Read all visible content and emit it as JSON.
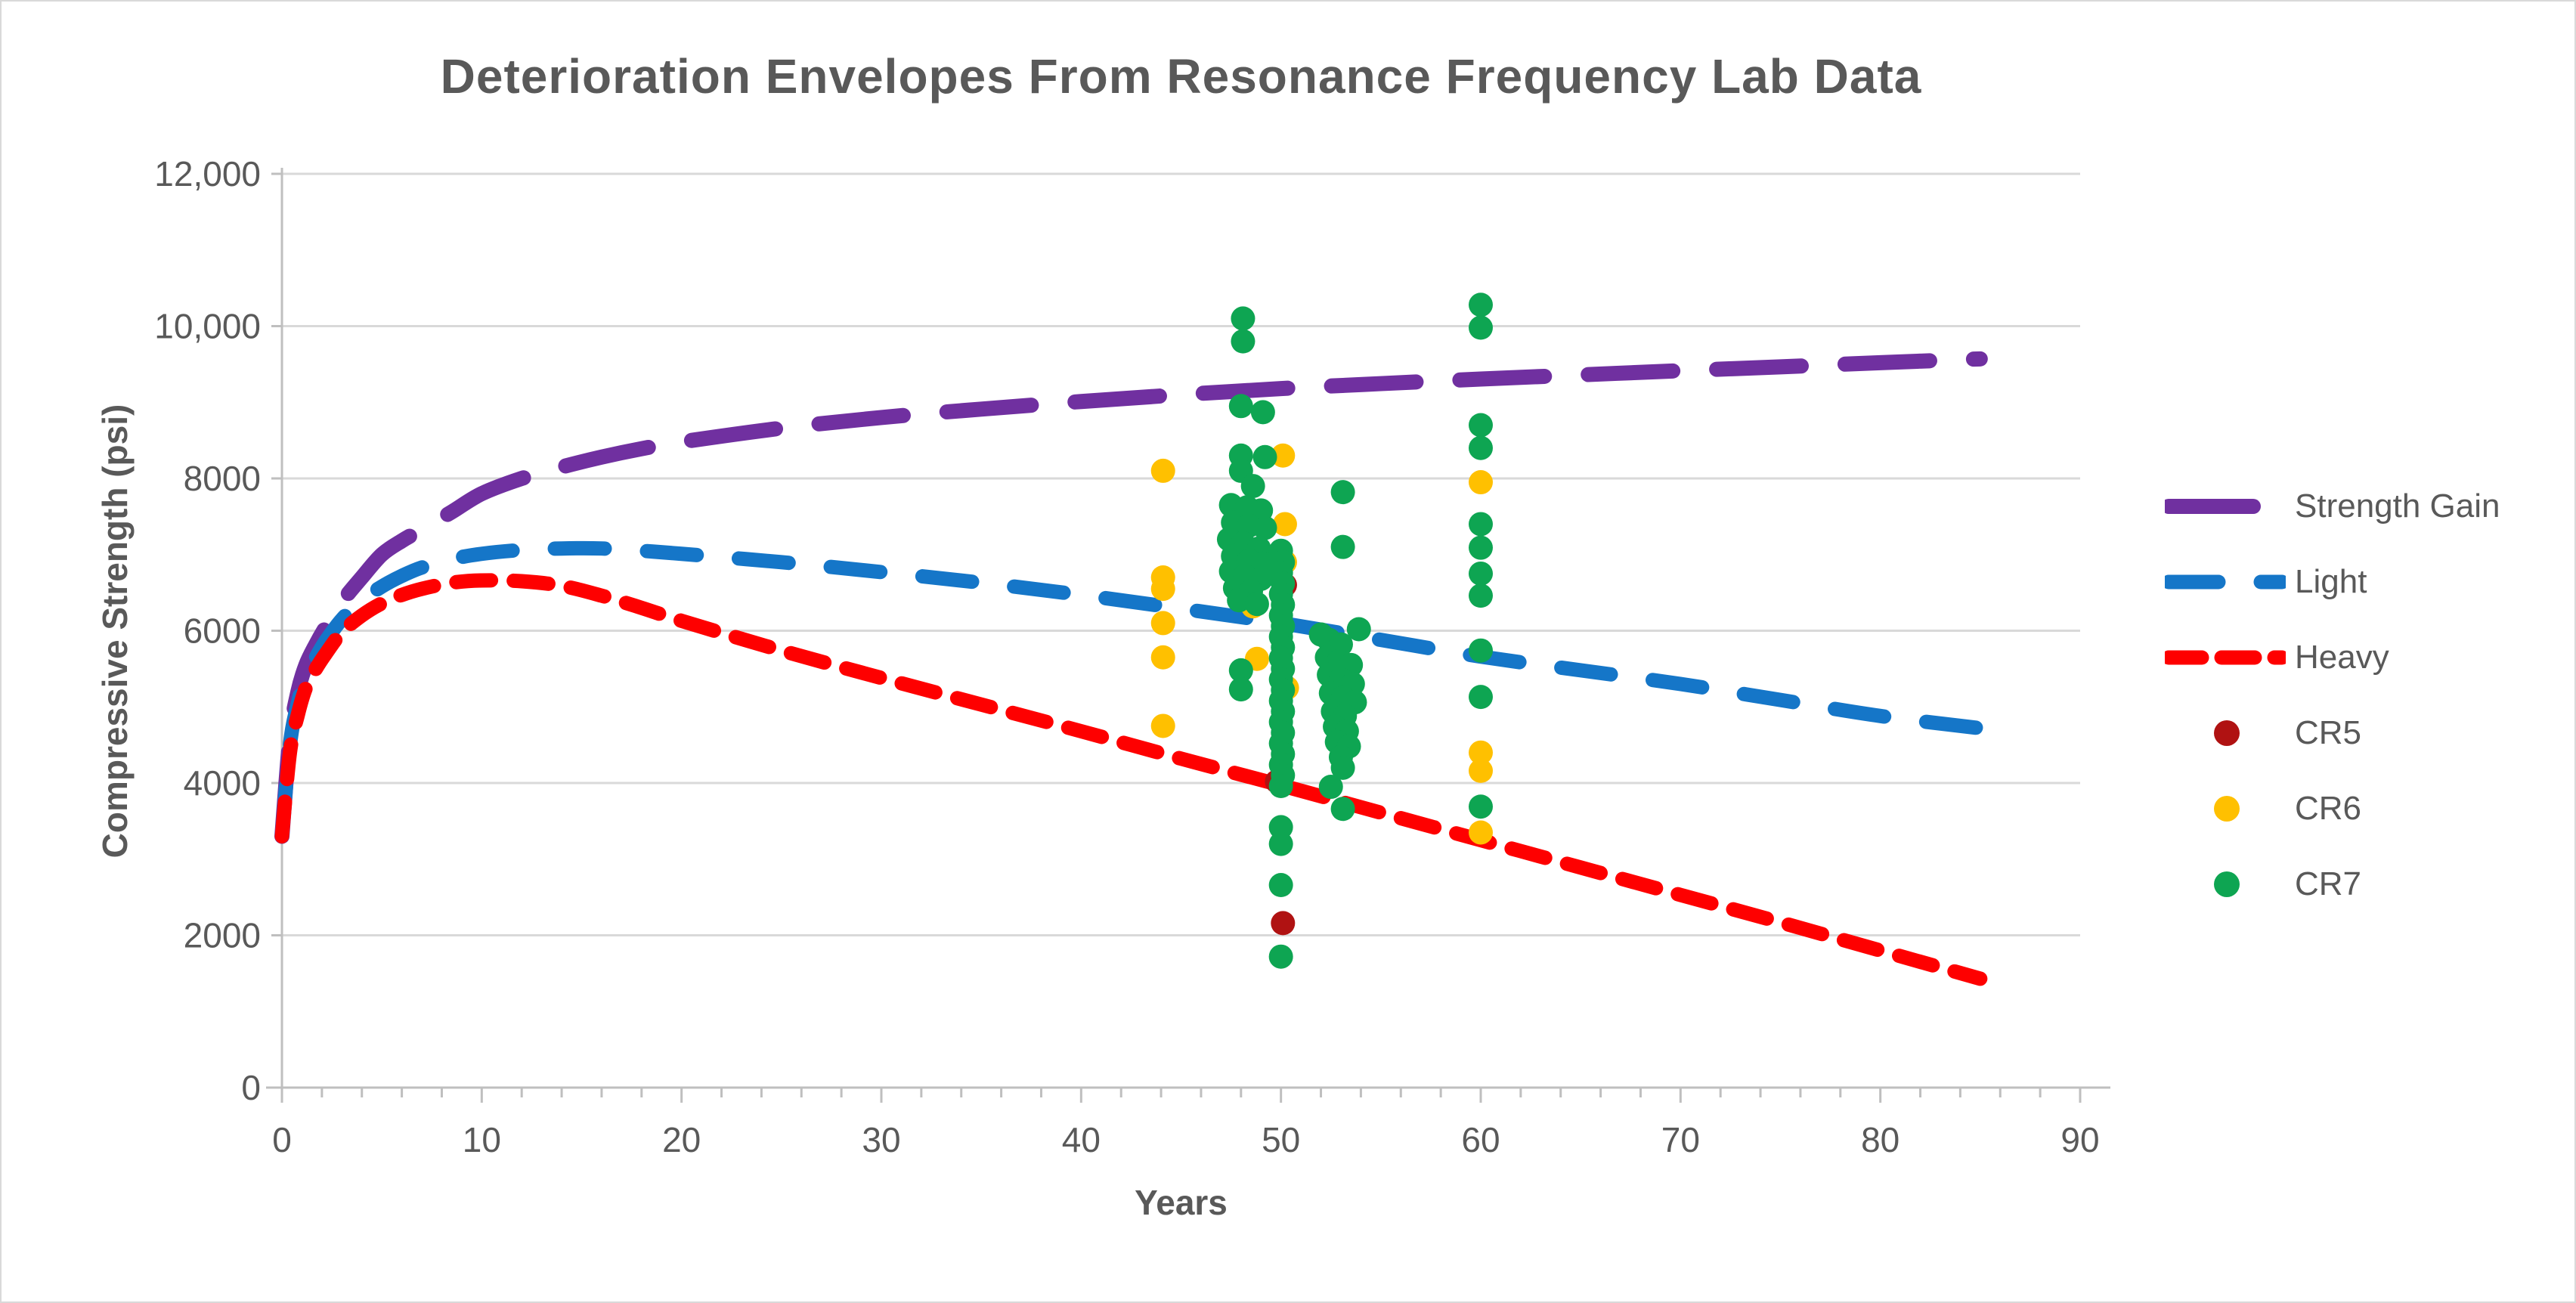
{
  "chart_data": {
    "type": "scatter+line",
    "title": "Deterioration Envelopes From Resonance Frequency Lab Data",
    "xlabel": "Years",
    "ylabel": "Compressive Strength (psi)",
    "xlim": [
      0,
      90
    ],
    "ylim": [
      0,
      12000
    ],
    "x_ticks": [
      0,
      10,
      20,
      30,
      40,
      50,
      60,
      70,
      80,
      90
    ],
    "x_tick_labels": [
      "0",
      "10",
      "20",
      "30",
      "40",
      "50",
      "60",
      "70",
      "80",
      "90"
    ],
    "x_minor_tick_step": 2,
    "y_ticks": [
      0,
      2000,
      4000,
      6000,
      8000,
      10000,
      12000
    ],
    "y_tick_labels": [
      "0",
      "2000",
      "4000",
      "6000",
      "8000",
      "10,000",
      "12,000"
    ],
    "grid": "horizontal",
    "legend_position": "right",
    "colors": {
      "text": "#595959",
      "grid": "#D9D9D9",
      "axis": "#BFBFBF",
      "strength_gain": "#7030A0",
      "light": "#1576C8",
      "heavy": "#FE0000",
      "cr5": "#B01212",
      "cr6": "#FFC000",
      "cr7": "#0EA552"
    },
    "series": [
      {
        "name": "Strength Gain",
        "type": "line",
        "color": "#7030A0",
        "width": 20,
        "dash": [
          112,
          58
        ],
        "points": [
          [
            0,
            3300
          ],
          [
            0.4,
            4600
          ],
          [
            0.8,
            5200
          ],
          [
            1.2,
            5550
          ],
          [
            1.7,
            5820
          ],
          [
            2.2,
            6050
          ],
          [
            3,
            6380
          ],
          [
            4,
            6700
          ],
          [
            5,
            7000
          ],
          [
            6,
            7180
          ],
          [
            7,
            7330
          ],
          [
            8.5,
            7560
          ],
          [
            10,
            7800
          ],
          [
            12,
            8000
          ],
          [
            14,
            8150
          ],
          [
            16,
            8280
          ],
          [
            18,
            8390
          ],
          [
            20,
            8480
          ],
          [
            25,
            8660
          ],
          [
            30,
            8800
          ],
          [
            35,
            8910
          ],
          [
            40,
            9010
          ],
          [
            45,
            9100
          ],
          [
            50,
            9180
          ],
          [
            55,
            9245
          ],
          [
            60,
            9305
          ],
          [
            65,
            9360
          ],
          [
            70,
            9415
          ],
          [
            75,
            9465
          ],
          [
            80,
            9520
          ],
          [
            85,
            9570
          ]
        ]
      },
      {
        "name": "Light",
        "type": "line",
        "color": "#1576C8",
        "width": 19,
        "dash": [
          66,
          56
        ],
        "points": [
          [
            0,
            3300
          ],
          [
            0.4,
            4500
          ],
          [
            0.8,
            5050
          ],
          [
            1.2,
            5400
          ],
          [
            1.7,
            5650
          ],
          [
            2.2,
            5870
          ],
          [
            3,
            6150
          ],
          [
            4,
            6400
          ],
          [
            5,
            6580
          ],
          [
            6,
            6720
          ],
          [
            7,
            6830
          ],
          [
            8.5,
            6940
          ],
          [
            10,
            7010
          ],
          [
            12,
            7060
          ],
          [
            14,
            7080
          ],
          [
            16,
            7080
          ],
          [
            18,
            7050
          ],
          [
            20,
            7010
          ],
          [
            25,
            6900
          ],
          [
            30,
            6770
          ],
          [
            35,
            6630
          ],
          [
            40,
            6470
          ],
          [
            45,
            6290
          ],
          [
            50,
            6100
          ],
          [
            55,
            5880
          ],
          [
            60,
            5660
          ],
          [
            65,
            5480
          ],
          [
            70,
            5300
          ],
          [
            75,
            5090
          ],
          [
            80,
            4880
          ],
          [
            85,
            4720
          ]
        ]
      },
      {
        "name": "Heavy",
        "type": "line",
        "color": "#FE0000",
        "width": 19,
        "dash": [
          46,
          30
        ],
        "points": [
          [
            0,
            3300
          ],
          [
            0.4,
            4400
          ],
          [
            0.8,
            4900
          ],
          [
            1.2,
            5250
          ],
          [
            1.7,
            5500
          ],
          [
            2.2,
            5700
          ],
          [
            3,
            5980
          ],
          [
            4,
            6200
          ],
          [
            5,
            6360
          ],
          [
            6,
            6470
          ],
          [
            7,
            6550
          ],
          [
            8.5,
            6630
          ],
          [
            10,
            6660
          ],
          [
            12,
            6650
          ],
          [
            14,
            6590
          ],
          [
            16,
            6460
          ],
          [
            18,
            6300
          ],
          [
            20,
            6130
          ],
          [
            25,
            5740
          ],
          [
            30,
            5380
          ],
          [
            35,
            5030
          ],
          [
            40,
            4680
          ],
          [
            45,
            4320
          ],
          [
            50,
            3970
          ],
          [
            55,
            3610
          ],
          [
            60,
            3250
          ],
          [
            65,
            2890
          ],
          [
            70,
            2530
          ],
          [
            75,
            2170
          ],
          [
            80,
            1800
          ],
          [
            85,
            1430
          ]
        ]
      },
      {
        "name": "CR5",
        "type": "scatter",
        "color": "#B01212",
        "points": [
          [
            50.2,
            6600
          ],
          [
            49.8,
            4020
          ],
          [
            50.1,
            2160
          ]
        ]
      },
      {
        "name": "CR6",
        "type": "scatter",
        "color": "#FFC000",
        "points": [
          [
            44.1,
            8100
          ],
          [
            44.1,
            6700
          ],
          [
            44.1,
            6550
          ],
          [
            44.1,
            6100
          ],
          [
            44.1,
            5650
          ],
          [
            44.1,
            4750
          ],
          [
            50.1,
            8300
          ],
          [
            50.2,
            7400
          ],
          [
            50.2,
            6900
          ],
          [
            48.6,
            6320
          ],
          [
            48.8,
            5630
          ],
          [
            50.3,
            5250
          ],
          [
            60,
            7950
          ],
          [
            60,
            4400
          ],
          [
            60,
            4160
          ],
          [
            60,
            3350
          ]
        ]
      },
      {
        "name": "CR7",
        "type": "scatter",
        "color": "#0EA552",
        "points": [
          [
            48.1,
            10100
          ],
          [
            48.1,
            9800
          ],
          [
            48.0,
            8950
          ],
          [
            49.1,
            8870
          ],
          [
            48.0,
            8300
          ],
          [
            49.2,
            8280
          ],
          [
            48.0,
            8100
          ],
          [
            48.6,
            7900
          ],
          [
            47.5,
            7650
          ],
          [
            48.3,
            7620
          ],
          [
            49.0,
            7580
          ],
          [
            47.6,
            7420
          ],
          [
            48.4,
            7380
          ],
          [
            49.2,
            7350
          ],
          [
            47.4,
            7200
          ],
          [
            48.1,
            7150
          ],
          [
            48.9,
            7080
          ],
          [
            47.6,
            6980
          ],
          [
            48.4,
            6920
          ],
          [
            49.1,
            6880
          ],
          [
            47.5,
            6780
          ],
          [
            48.2,
            6720
          ],
          [
            49.0,
            6680
          ],
          [
            47.7,
            6560
          ],
          [
            48.5,
            6520
          ],
          [
            47.9,
            6400
          ],
          [
            48.8,
            6350
          ],
          [
            50.0,
            7050
          ],
          [
            50.1,
            6900
          ],
          [
            50.0,
            6760
          ],
          [
            50.1,
            6620
          ],
          [
            50.0,
            6480
          ],
          [
            50.1,
            6340
          ],
          [
            50.0,
            6200
          ],
          [
            50.1,
            6060
          ],
          [
            50.0,
            5920
          ],
          [
            50.1,
            5780
          ],
          [
            50.0,
            5640
          ],
          [
            50.1,
            5500
          ],
          [
            50.0,
            5360
          ],
          [
            50.1,
            5220
          ],
          [
            50.0,
            5080
          ],
          [
            50.1,
            4940
          ],
          [
            50.0,
            4800
          ],
          [
            50.1,
            4660
          ],
          [
            50.0,
            4520
          ],
          [
            50.1,
            4380
          ],
          [
            50.0,
            4240
          ],
          [
            50.1,
            4100
          ],
          [
            50.0,
            3960
          ],
          [
            48.0,
            5480
          ],
          [
            48.0,
            5230
          ],
          [
            50.0,
            3420
          ],
          [
            50.0,
            3200
          ],
          [
            50.0,
            2660
          ],
          [
            50.0,
            1720
          ],
          [
            53.1,
            7820
          ],
          [
            53.1,
            7100
          ],
          [
            52.0,
            5950
          ],
          [
            52.4,
            5880
          ],
          [
            53.0,
            5820
          ],
          [
            53.9,
            6020
          ],
          [
            52.3,
            5650
          ],
          [
            52.9,
            5600
          ],
          [
            53.5,
            5550
          ],
          [
            52.4,
            5420
          ],
          [
            53.0,
            5360
          ],
          [
            53.6,
            5300
          ],
          [
            52.5,
            5180
          ],
          [
            53.1,
            5120
          ],
          [
            53.7,
            5060
          ],
          [
            52.6,
            4940
          ],
          [
            53.2,
            4880
          ],
          [
            52.7,
            4740
          ],
          [
            53.3,
            4680
          ],
          [
            52.8,
            4540
          ],
          [
            53.4,
            4480
          ],
          [
            53.0,
            4340
          ],
          [
            53.1,
            4200
          ],
          [
            52.5,
            3950
          ],
          [
            53.1,
            3660
          ],
          [
            60,
            10280
          ],
          [
            60,
            9980
          ],
          [
            60,
            8700
          ],
          [
            60,
            8400
          ],
          [
            60,
            7400
          ],
          [
            60,
            7090
          ],
          [
            60,
            6750
          ],
          [
            60,
            6460
          ],
          [
            60,
            5740
          ],
          [
            60,
            5130
          ],
          [
            60,
            3690
          ]
        ]
      }
    ],
    "marker_radius": 16,
    "legend_labels": [
      "Strength Gain",
      "Light",
      "Heavy",
      "CR5",
      "CR6",
      "CR7"
    ]
  }
}
